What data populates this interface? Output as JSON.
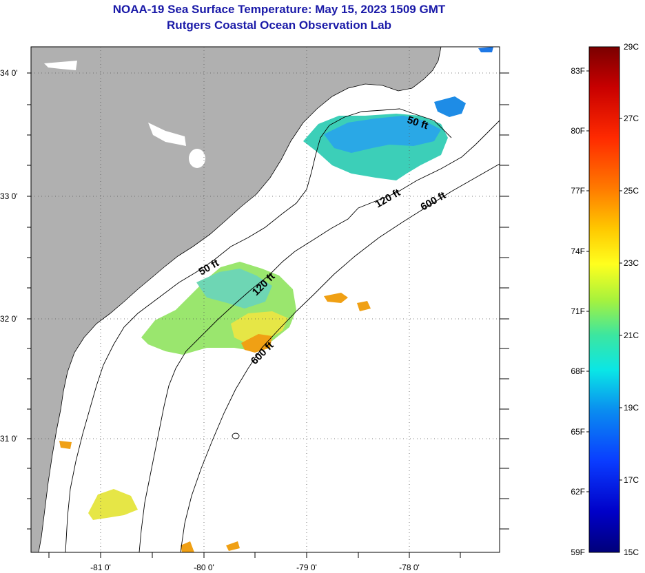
{
  "header": {
    "title": "NOAA-19 Sea Surface Temperature:  May 15, 2023 1509 GMT",
    "subtitle": "Rutgers Coastal Ocean Observation Lab"
  },
  "axes": {
    "lat_labels": [
      "34 0'",
      "33 0'",
      "32 0'",
      "31 0'"
    ],
    "lon_labels": [
      "-81 0'",
      "-80 0'",
      "-79 0'",
      "-78 0'"
    ]
  },
  "depth_labels": [
    "50 ft",
    "120 ft",
    "600 ft",
    "50 ft",
    "120 ft",
    "600 ft"
  ],
  "colorbar": {
    "celsius_labels": [
      "29C",
      "27C",
      "25C",
      "23C",
      "21C",
      "19C",
      "17C",
      "15C"
    ],
    "fahrenheit_labels": [
      "83F",
      "80F",
      "77F",
      "74F",
      "71F",
      "68F",
      "65F",
      "62F",
      "59F"
    ],
    "colors": [
      "#7a0000",
      "#c80000",
      "#ff2a00",
      "#ff7a00",
      "#ffc800",
      "#ffff1e",
      "#a8f23c",
      "#3ce6a0",
      "#0ae6e6",
      "#0a8cf0",
      "#0a3cff",
      "#0000c8",
      "#00007a"
    ]
  },
  "colors": {
    "land": "#b0b0b0",
    "title": "#1a1aa8",
    "cool_patch": "#2aa8e6",
    "teal_patch": "#3ccfb8",
    "warm_patch": "#e6e646",
    "hot_patch": "#f0a014"
  }
}
